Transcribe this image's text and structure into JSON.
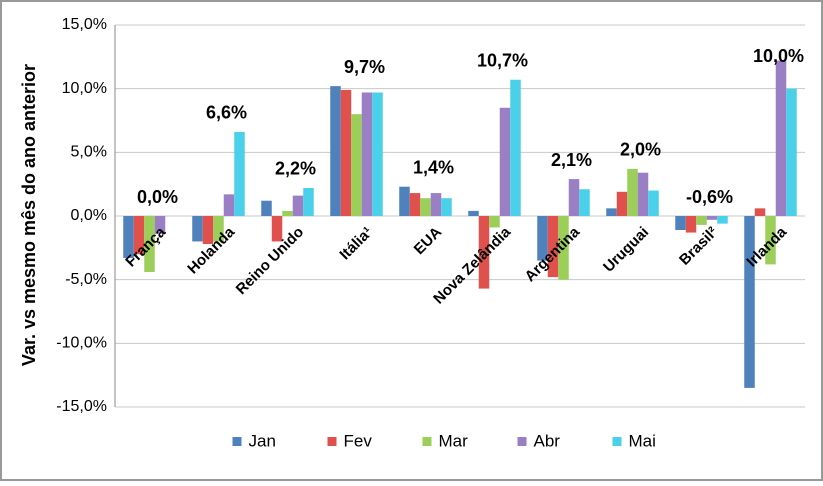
{
  "chart_data": {
    "type": "bar",
    "y_label": "Var. vs mesmo mês do ano anterior",
    "categories": [
      "França",
      "Holanda",
      "Reino Unido",
      "Itália¹",
      "EUA",
      "Nova Zelândia",
      "Argentina",
      "Uruguai",
      "Brasil²",
      "Irlanda"
    ],
    "series": [
      {
        "name": "Jan",
        "color": "#4f81bd",
        "values": [
          -3.3,
          -2.0,
          1.2,
          10.2,
          2.3,
          0.4,
          -3.5,
          0.6,
          -1.1,
          -13.5
        ]
      },
      {
        "name": "Fev",
        "color": "#e0504d",
        "values": [
          -3.0,
          -2.2,
          -2.0,
          9.9,
          1.8,
          -5.7,
          -4.8,
          1.9,
          -1.3,
          0.6
        ]
      },
      {
        "name": "Mar",
        "color": "#9bcf5a",
        "values": [
          -4.4,
          -2.0,
          0.4,
          8.0,
          1.4,
          -0.9,
          -5.0,
          3.7,
          -0.7,
          -3.8
        ]
      },
      {
        "name": "Abr",
        "color": "#9a7fc4",
        "values": [
          -1.4,
          1.7,
          1.6,
          9.7,
          1.8,
          8.5,
          2.9,
          3.4,
          -0.3,
          12.2
        ]
      },
      {
        "name": "Mai",
        "color": "#4bd0ea",
        "values": [
          0.0,
          6.6,
          2.2,
          9.7,
          1.4,
          10.7,
          2.1,
          2.0,
          -0.6,
          10.0
        ],
        "value_labels": [
          "0,0%",
          "6,6%",
          "2,2%",
          "9,7%",
          "1,4%",
          "10,7%",
          "2,1%",
          "2,0%",
          "-0,6%",
          "10,0%"
        ]
      }
    ],
    "ylim": [
      -15,
      15
    ],
    "yticks": [
      {
        "value": -15,
        "label": "-15,0%"
      },
      {
        "value": -10,
        "label": "-10,0%"
      },
      {
        "value": -5,
        "label": "-5,0%"
      },
      {
        "value": 0,
        "label": "0,0%"
      },
      {
        "value": 5,
        "label": "5,0%"
      },
      {
        "value": 10,
        "label": "10,0%"
      },
      {
        "value": 15,
        "label": "15,0%"
      }
    ],
    "grid": true,
    "legend": "bottom"
  }
}
